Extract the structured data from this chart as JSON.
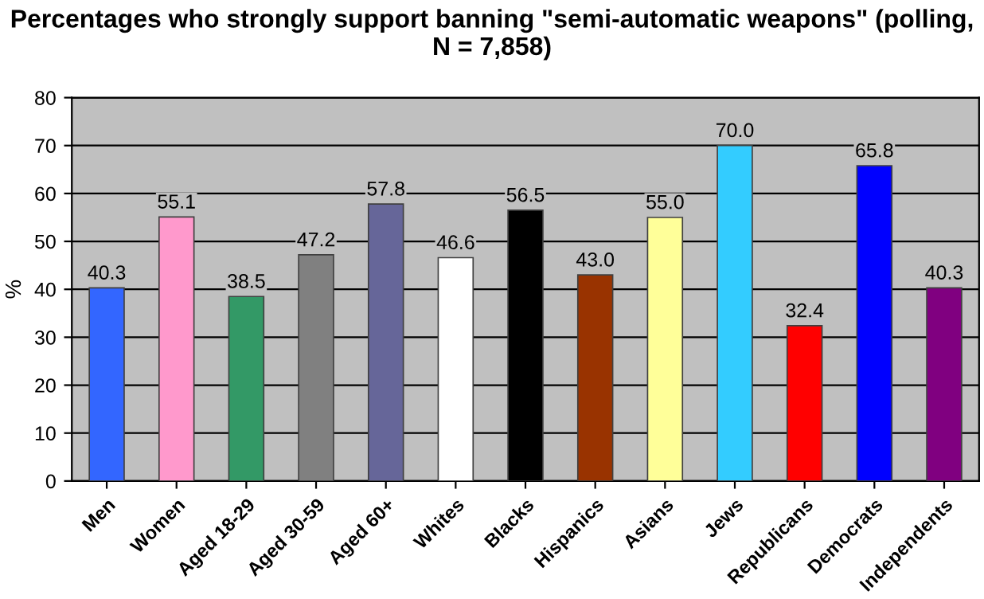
{
  "chart_data": {
    "type": "bar",
    "title": "Percentages who strongly support banning \"semi-automatic weapons\" (polling, N = 7,858)",
    "ylabel": "%",
    "categories": [
      "Men",
      "Women",
      "Aged 18-29",
      "Aged 30-59",
      "Aged 60+",
      "Whites",
      "Blacks",
      "Hispanics",
      "Asians",
      "Jews",
      "Republicans",
      "Democrats",
      "Independents"
    ],
    "values": [
      40.3,
      55.1,
      38.5,
      47.2,
      57.8,
      46.6,
      56.5,
      43.0,
      55.0,
      70.0,
      32.4,
      65.8,
      40.3
    ],
    "value_labels": [
      "40.3",
      "55.1",
      "38.5",
      "47.2",
      "57.8",
      "46.6",
      "56.5",
      "43.0",
      "55.0",
      "70.0",
      "32.4",
      "65.8",
      "40.3"
    ],
    "colors": [
      "#3366ff",
      "#ff99cc",
      "#339966",
      "#808080",
      "#666699",
      "#ffffff",
      "#000000",
      "#993300",
      "#ffff99",
      "#33ccff",
      "#ff0000",
      "#0000ff",
      "#800080"
    ],
    "ylim": [
      0,
      80
    ],
    "yticks": [
      0,
      10,
      20,
      30,
      40,
      50,
      60,
      70,
      80
    ],
    "grid": "y",
    "legend": false
  }
}
